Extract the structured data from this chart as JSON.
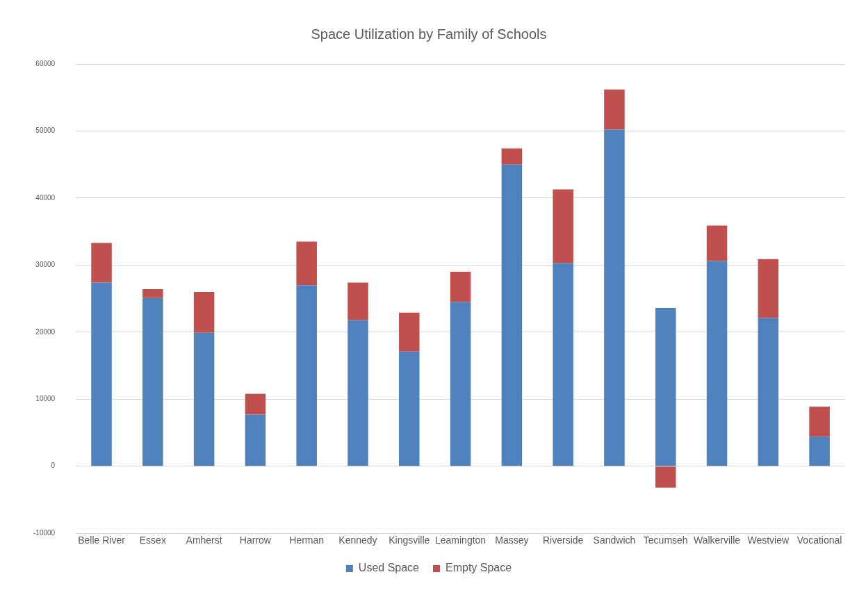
{
  "chart_data": {
    "type": "bar",
    "title": "Space Utilization by Family of Schools",
    "stacked": true,
    "categories": [
      "Belle River",
      "Essex",
      "Amherst",
      "Harrow",
      "Herman",
      "Kennedy",
      "Kingsville",
      "Leamington",
      "Massey",
      "Riverside",
      "Sandwich",
      "Tecumseh",
      "Walkerville",
      "Westview",
      "Vocational"
    ],
    "series": [
      {
        "name": "Used Space",
        "color": "#4f81bd",
        "values": [
          27400,
          25100,
          19900,
          7700,
          27000,
          21800,
          17100,
          24500,
          45000,
          30300,
          50200,
          23600,
          30600,
          22100,
          4400
        ]
      },
      {
        "name": "Empty Space",
        "color": "#c0504d",
        "values": [
          5900,
          1300,
          6100,
          3100,
          6500,
          5600,
          5800,
          4500,
          2400,
          11000,
          6000,
          -3200,
          5300,
          8800,
          4500
        ]
      }
    ],
    "ylim": [
      -10000,
      60000
    ],
    "yticks": [
      -10000,
      0,
      10000,
      20000,
      30000,
      40000,
      50000,
      60000
    ],
    "grid": "y",
    "legend": "bottom"
  }
}
